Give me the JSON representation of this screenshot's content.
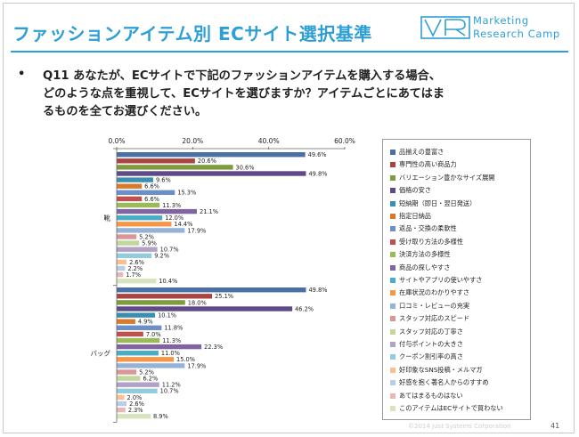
{
  "header": {
    "title": "ファッションアイテム別 ECサイト選択基準",
    "logo_line1": "Marketing",
    "logo_line2": "Research Camp"
  },
  "question": {
    "bullet": "•",
    "line1": "Q11 あなたが、ECサイトで下記のファッションアイテムを購入する場合、",
    "line2": "どのような点を重視して、ECサイトを選びますか？アイテムごとにあてはま",
    "line3": "るものを全てお選びください。"
  },
  "footer": {
    "copyright": "©2014 Just Systems Corporation",
    "page": "41"
  },
  "chart_data": {
    "type": "bar",
    "orientation": "horizontal",
    "xlim": [
      0,
      60
    ],
    "xticks": [
      "0.0%",
      "20.0%",
      "40.0%",
      "60.0%"
    ],
    "grid": false,
    "legend_position": "right",
    "categories": [
      "靴",
      "バッグ"
    ],
    "series": [
      {
        "name": "品揃えの豊富さ",
        "color": "#4a6fa6",
        "values": [
          49.6,
          49.8
        ]
      },
      {
        "name": "専門性の高い商品力",
        "color": "#a94442",
        "values": [
          20.6,
          25.1
        ]
      },
      {
        "name": "バリエーション豊かなサイズ展開",
        "color": "#7e9b3e",
        "values": [
          30.6,
          18.0
        ]
      },
      {
        "name": "価格の安さ",
        "color": "#5e4a86",
        "values": [
          49.8,
          46.2
        ]
      },
      {
        "name": "短納期（即日・翌日発送）",
        "color": "#3a8fb0",
        "values": [
          9.6,
          10.1
        ]
      },
      {
        "name": "指定日納品",
        "color": "#d97a2b",
        "values": [
          6.6,
          4.9
        ]
      },
      {
        "name": "返品・交換の柔軟性",
        "color": "#6d8fc7",
        "values": [
          15.3,
          11.8
        ]
      },
      {
        "name": "受け取り方法の多様性",
        "color": "#c0504d",
        "values": [
          6.6,
          7.0
        ]
      },
      {
        "name": "決済方法の多様性",
        "color": "#9bbb59",
        "values": [
          11.3,
          11.3
        ]
      },
      {
        "name": "商品の探しやすさ",
        "color": "#8064a2",
        "values": [
          21.1,
          22.3
        ]
      },
      {
        "name": "サイトやアプリの使いやすさ",
        "color": "#4bacc6",
        "values": [
          12.0,
          11.0
        ]
      },
      {
        "name": "在庫状況のわかりやすさ",
        "color": "#f79646",
        "values": [
          14.4,
          15.0
        ]
      },
      {
        "name": "口コミ・レビューの充実",
        "color": "#95b3d7",
        "values": [
          17.9,
          17.9
        ]
      },
      {
        "name": "スタッフ対応のスピード",
        "color": "#d99694",
        "values": [
          5.2,
          5.2
        ]
      },
      {
        "name": "スタッフ対応の丁寧さ",
        "color": "#c3d69b",
        "values": [
          5.9,
          6.2
        ]
      },
      {
        "name": "付与ポイントの大きさ",
        "color": "#b3a2c7",
        "values": [
          10.7,
          11.2
        ]
      },
      {
        "name": "クーポン割引率の高さ",
        "color": "#93cddd",
        "values": [
          9.2,
          10.7
        ]
      },
      {
        "name": "好印象なSNS投稿・メルマガ",
        "color": "#fac090",
        "values": [
          2.6,
          2.0
        ]
      },
      {
        "name": "好感を抱く著名人からのすすめ",
        "color": "#b9cde5",
        "values": [
          2.2,
          2.6
        ]
      },
      {
        "name": "あてはまるものはない",
        "color": "#e6b9b8",
        "values": [
          1.7,
          2.3
        ]
      },
      {
        "name": "このアイテムはECサイトで買わない",
        "color": "#d7e4bd",
        "values": [
          10.4,
          8.9
        ]
      }
    ],
    "value_labels": [
      [
        "49.6%",
        "20.6%",
        "30.6%",
        "49.8%",
        "9.6%",
        "6.6%",
        "15.3%",
        "6.6%",
        "11.3%",
        "21.1%",
        "12.0%",
        "14.4%",
        "17.9%",
        "5.2%",
        "5.9%",
        "10.7%",
        "9.2%",
        "2.6%",
        "2.2%",
        "1.7%",
        "10.4%"
      ],
      [
        "49.8%",
        "25.1%",
        "18.0%",
        "46.2%",
        "10.1%",
        "4.9%",
        "11.8%",
        "7.0%",
        "11.3%",
        "22.3%",
        "11.0%",
        "15.0%",
        "17.9%",
        "5.2%",
        "6.2%",
        "11.2%",
        "10.7%",
        "2.0%",
        "2.6%",
        "2.3%",
        "8.9%"
      ]
    ]
  }
}
